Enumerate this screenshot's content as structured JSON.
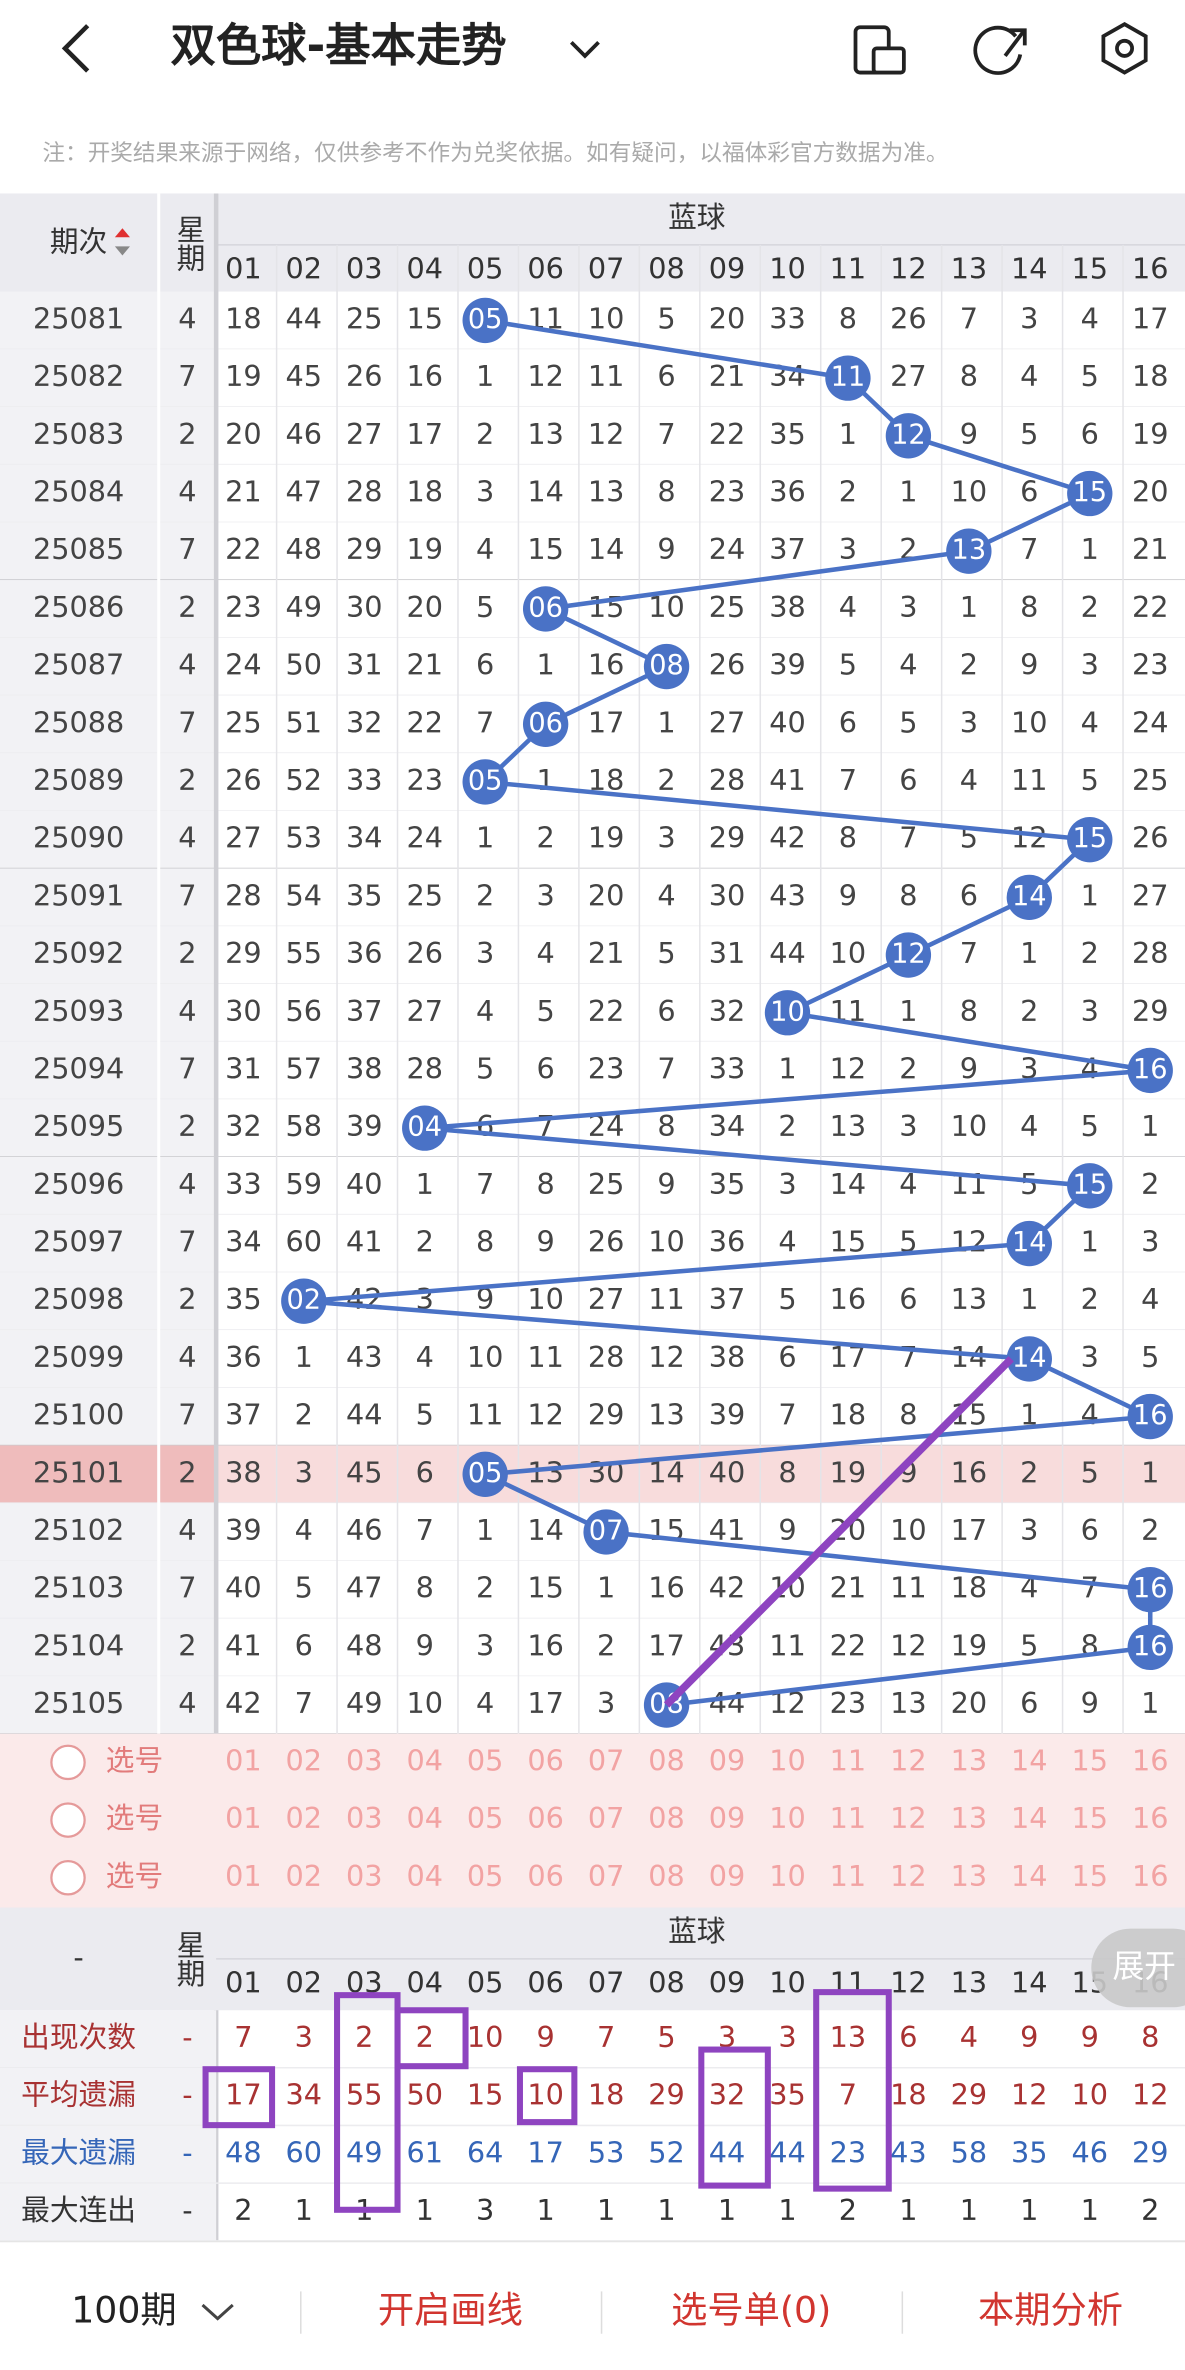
{
  "header": {
    "title": "双色球-基本走势"
  },
  "note": "注：开奖结果来源于网络，仅供参考不作为兑奖依据。如有疑问，以福体彩官方数据为准。",
  "table": {
    "col_issue": "期次",
    "col_weekday": "星期",
    "group": "蓝球",
    "numbers": [
      "01",
      "02",
      "03",
      "04",
      "05",
      "06",
      "07",
      "08",
      "09",
      "10",
      "11",
      "12",
      "13",
      "14",
      "15",
      "16"
    ],
    "rows": [
      {
        "issue": "25081",
        "weekday": 4,
        "cells": [
          18,
          44,
          25,
          15,
          "05",
          11,
          10,
          5,
          20,
          33,
          8,
          26,
          7,
          3,
          4,
          17
        ]
      },
      {
        "issue": "25082",
        "weekday": 7,
        "cells": [
          19,
          45,
          26,
          16,
          1,
          12,
          11,
          6,
          21,
          34,
          "11",
          27,
          8,
          4,
          5,
          18
        ]
      },
      {
        "issue": "25083",
        "weekday": 2,
        "cells": [
          20,
          46,
          27,
          17,
          2,
          13,
          12,
          7,
          22,
          35,
          1,
          "12",
          9,
          5,
          6,
          19
        ]
      },
      {
        "issue": "25084",
        "weekday": 4,
        "cells": [
          21,
          47,
          28,
          18,
          3,
          14,
          13,
          8,
          23,
          36,
          2,
          1,
          10,
          6,
          "15",
          20
        ]
      },
      {
        "issue": "25085",
        "weekday": 7,
        "cells": [
          22,
          48,
          29,
          19,
          4,
          15,
          14,
          9,
          24,
          37,
          3,
          2,
          "13",
          7,
          1,
          21
        ]
      },
      {
        "issue": "25086",
        "weekday": 2,
        "cells": [
          23,
          49,
          30,
          20,
          5,
          "06",
          15,
          10,
          25,
          38,
          4,
          3,
          1,
          8,
          2,
          22
        ]
      },
      {
        "issue": "25087",
        "weekday": 4,
        "cells": [
          24,
          50,
          31,
          21,
          6,
          1,
          16,
          "08",
          26,
          39,
          5,
          4,
          2,
          9,
          3,
          23
        ]
      },
      {
        "issue": "25088",
        "weekday": 7,
        "cells": [
          25,
          51,
          32,
          22,
          7,
          "06",
          17,
          1,
          27,
          40,
          6,
          5,
          3,
          10,
          4,
          24
        ]
      },
      {
        "issue": "25089",
        "weekday": 2,
        "cells": [
          26,
          52,
          33,
          23,
          "05",
          1,
          18,
          2,
          28,
          41,
          7,
          6,
          4,
          11,
          5,
          25
        ]
      },
      {
        "issue": "25090",
        "weekday": 4,
        "cells": [
          27,
          53,
          34,
          24,
          1,
          2,
          19,
          3,
          29,
          42,
          8,
          7,
          5,
          12,
          "15",
          26
        ]
      },
      {
        "issue": "25091",
        "weekday": 7,
        "cells": [
          28,
          54,
          35,
          25,
          2,
          3,
          20,
          4,
          30,
          43,
          9,
          8,
          6,
          "14",
          1,
          27
        ]
      },
      {
        "issue": "25092",
        "weekday": 2,
        "cells": [
          29,
          55,
          36,
          26,
          3,
          4,
          21,
          5,
          31,
          44,
          10,
          "12",
          7,
          1,
          2,
          28
        ]
      },
      {
        "issue": "25093",
        "weekday": 4,
        "cells": [
          30,
          56,
          37,
          27,
          4,
          5,
          22,
          6,
          32,
          "10",
          11,
          1,
          8,
          2,
          3,
          29
        ]
      },
      {
        "issue": "25094",
        "weekday": 7,
        "cells": [
          31,
          57,
          38,
          28,
          5,
          6,
          23,
          7,
          33,
          1,
          12,
          2,
          9,
          3,
          4,
          "16"
        ]
      },
      {
        "issue": "25095",
        "weekday": 2,
        "cells": [
          32,
          58,
          39,
          "04",
          6,
          7,
          24,
          8,
          34,
          2,
          13,
          3,
          10,
          4,
          5,
          1
        ]
      },
      {
        "issue": "25096",
        "weekday": 4,
        "cells": [
          33,
          59,
          40,
          1,
          7,
          8,
          25,
          9,
          35,
          3,
          14,
          4,
          11,
          5,
          "15",
          2
        ]
      },
      {
        "issue": "25097",
        "weekday": 7,
        "cells": [
          34,
          60,
          41,
          2,
          8,
          9,
          26,
          10,
          36,
          4,
          15,
          5,
          12,
          "14",
          1,
          3
        ]
      },
      {
        "issue": "25098",
        "weekday": 2,
        "cells": [
          35,
          "02",
          42,
          3,
          9,
          10,
          27,
          11,
          37,
          5,
          16,
          6,
          13,
          1,
          2,
          4
        ]
      },
      {
        "issue": "25099",
        "weekday": 4,
        "cells": [
          36,
          1,
          43,
          4,
          10,
          11,
          28,
          12,
          38,
          6,
          17,
          7,
          14,
          "14",
          3,
          5
        ]
      },
      {
        "issue": "25100",
        "weekday": 7,
        "cells": [
          37,
          2,
          44,
          5,
          11,
          12,
          29,
          13,
          39,
          7,
          18,
          8,
          15,
          1,
          4,
          "16"
        ]
      },
      {
        "issue": "25101",
        "weekday": 2,
        "cells": [
          38,
          3,
          45,
          6,
          "05",
          13,
          30,
          14,
          40,
          8,
          19,
          9,
          16,
          2,
          5,
          1
        ]
      },
      {
        "issue": "25102",
        "weekday": 4,
        "cells": [
          39,
          4,
          46,
          7,
          1,
          14,
          "07",
          15,
          41,
          9,
          20,
          10,
          17,
          3,
          6,
          2
        ]
      },
      {
        "issue": "25103",
        "weekday": 7,
        "cells": [
          40,
          5,
          47,
          8,
          2,
          15,
          1,
          16,
          42,
          10,
          21,
          11,
          18,
          4,
          7,
          "16"
        ]
      },
      {
        "issue": "25104",
        "weekday": 2,
        "cells": [
          41,
          6,
          48,
          9,
          3,
          16,
          2,
          17,
          43,
          11,
          22,
          12,
          19,
          5,
          8,
          "16"
        ]
      },
      {
        "issue": "25105",
        "weekday": 4,
        "cells": [
          42,
          7,
          49,
          10,
          4,
          17,
          3,
          "08",
          44,
          12,
          23,
          13,
          20,
          6,
          9,
          1
        ]
      }
    ]
  },
  "select_rows": [
    "选号",
    "选号",
    "选号"
  ],
  "stats": {
    "issue": "-",
    "weekday": "星期",
    "group": "蓝球",
    "rows": [
      {
        "label": "出现次数",
        "weekday": "-",
        "values": [
          7,
          3,
          2,
          2,
          10,
          9,
          7,
          5,
          3,
          3,
          13,
          6,
          4,
          9,
          9,
          8
        ]
      },
      {
        "label": "平均遗漏",
        "weekday": "-",
        "values": [
          17,
          34,
          55,
          50,
          15,
          10,
          18,
          29,
          32,
          35,
          7,
          18,
          29,
          12,
          10,
          12
        ]
      },
      {
        "label": "最大遗漏",
        "weekday": "-",
        "values": [
          48,
          60,
          49,
          61,
          64,
          17,
          53,
          52,
          44,
          44,
          23,
          43,
          58,
          35,
          46,
          29
        ]
      },
      {
        "label": "最大连出",
        "weekday": "-",
        "values": [
          2,
          1,
          1,
          1,
          3,
          1,
          1,
          1,
          1,
          1,
          2,
          1,
          1,
          1,
          1,
          2
        ]
      }
    ]
  },
  "expand": "展开",
  "footer": {
    "period": "100期",
    "draw": "开启画线",
    "ticket": "选号单(0)",
    "analysis": "本期分析"
  }
}
